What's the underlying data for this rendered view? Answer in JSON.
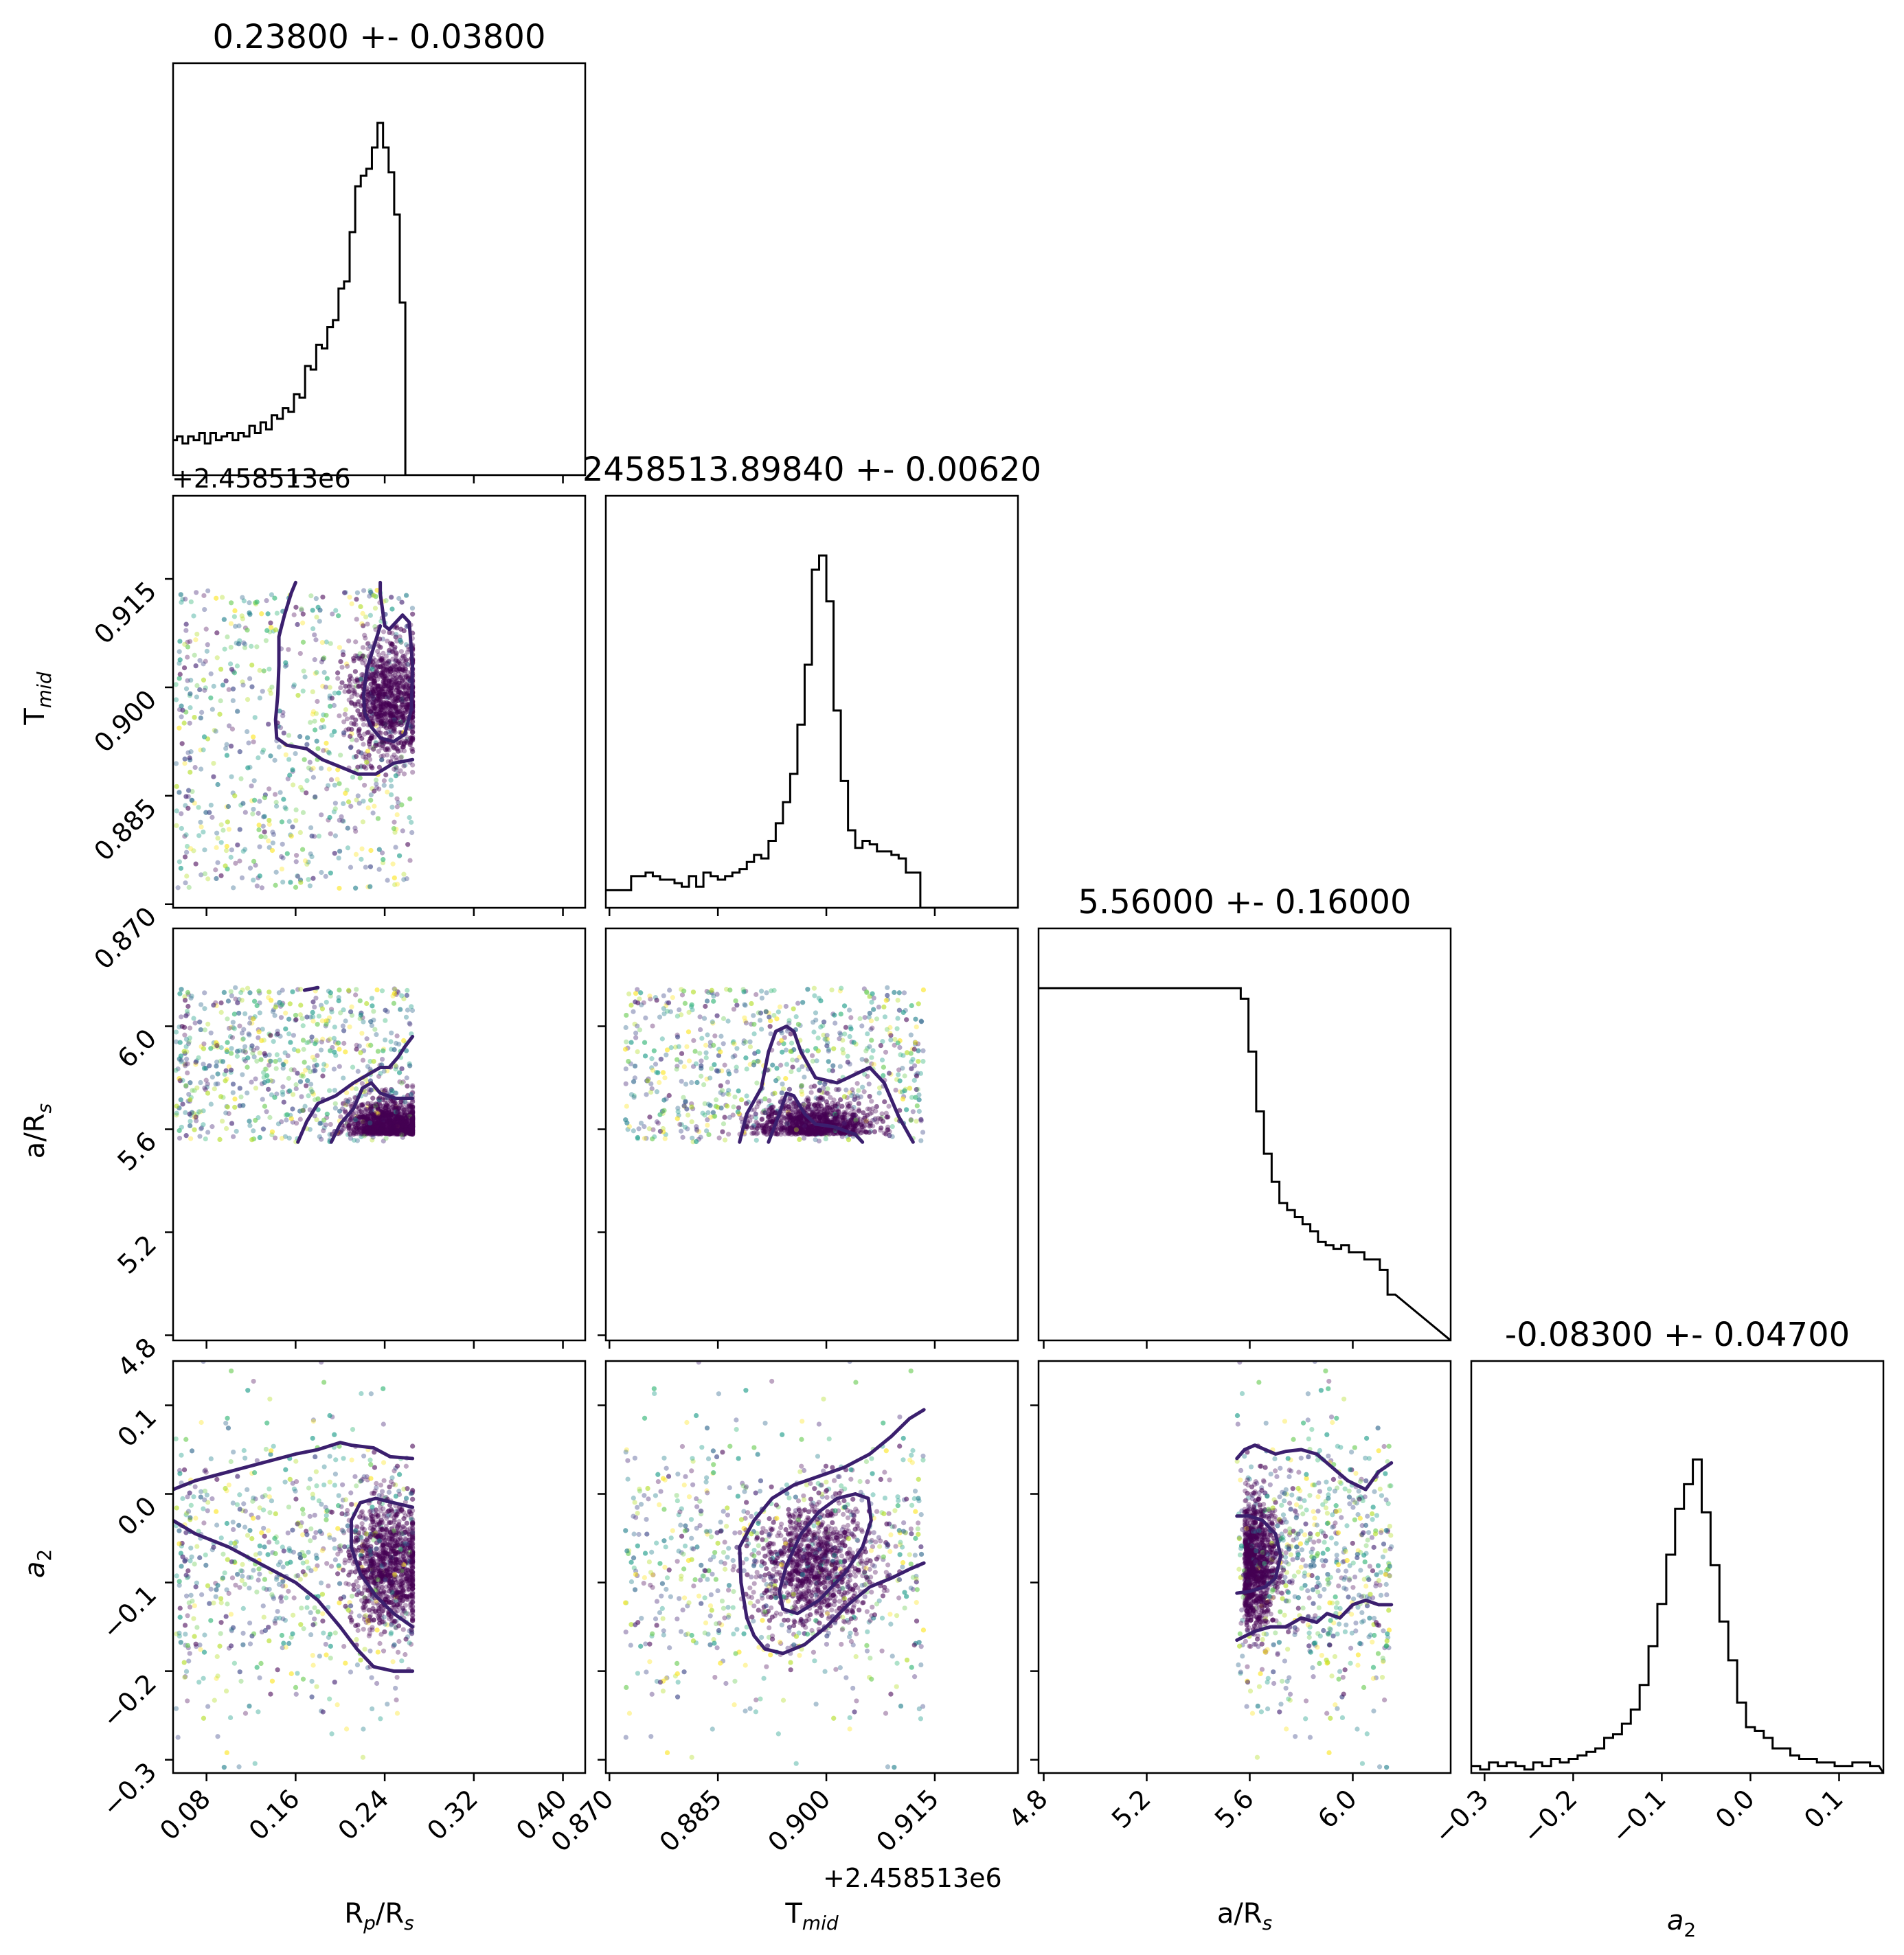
{
  "chart_data": {
    "type": "corner",
    "parameters": [
      {
        "key": "rprs",
        "label": "R_p/R_s",
        "label_main": "R",
        "label_sub": "p",
        "label_tail": "/R",
        "label_sub2": "s",
        "range": [
          0.05,
          0.42
        ],
        "ticks": [
          0.08,
          0.16,
          0.24,
          0.32,
          0.4
        ],
        "tick_labels": [
          "0.08",
          "0.16",
          "0.24",
          "0.32",
          "0.40"
        ],
        "title": "0.23800 +- 0.03800",
        "offset_text": ""
      },
      {
        "key": "tmid",
        "label": "T_mid",
        "label_main": "T",
        "label_sub": "mid",
        "label_tail": "",
        "label_sub2": "",
        "range": [
          0.8695,
          0.9265
        ],
        "ticks": [
          0.87,
          0.885,
          0.9,
          0.915
        ],
        "tick_labels": [
          "0.870",
          "0.885",
          "0.900",
          "0.915"
        ],
        "title": "2458513.89840 +- 0.00620",
        "offset_text": "+2.458513e6"
      },
      {
        "key": "ars",
        "label": "a/R_s",
        "label_main": "a/R",
        "label_sub": "s",
        "label_tail": "",
        "label_sub2": "",
        "range": [
          4.78,
          6.38
        ],
        "ticks": [
          4.8,
          5.2,
          5.6,
          6.0
        ],
        "tick_labels": [
          "4.8",
          "5.2",
          "5.6",
          "6.0"
        ],
        "title": "5.56000 +- 0.16000",
        "offset_text": ""
      },
      {
        "key": "a2",
        "label": "a_2",
        "label_main": "a",
        "label_sub": "2",
        "label_tail": "",
        "label_sub2": "",
        "range": [
          -0.315,
          0.15
        ],
        "ticks": [
          -0.3,
          -0.2,
          -0.1,
          0.0,
          0.1
        ],
        "tick_labels": [
          "−0.3",
          "−0.2",
          "−0.1",
          "0.0",
          "0.1"
        ],
        "title": "-0.08300 +- 0.04700",
        "offset_text": ""
      }
    ],
    "histograms": {
      "rprs": {
        "x": [
          0.051,
          0.056,
          0.061,
          0.066,
          0.071,
          0.076,
          0.081,
          0.086,
          0.091,
          0.096,
          0.101,
          0.106,
          0.111,
          0.116,
          0.121,
          0.126,
          0.131,
          0.136,
          0.141,
          0.146,
          0.151,
          0.156,
          0.161,
          0.166,
          0.171,
          0.176,
          0.181,
          0.186,
          0.191,
          0.196,
          0.201,
          0.206,
          0.211,
          0.216,
          0.221,
          0.226,
          0.231,
          0.236,
          0.241,
          0.246,
          0.251,
          0.256,
          0.261,
          0.266,
          0.271
        ],
        "y": [
          0.1,
          0.11,
          0.09,
          0.11,
          0.1,
          0.12,
          0.09,
          0.12,
          0.1,
          0.11,
          0.12,
          0.1,
          0.12,
          0.11,
          0.14,
          0.12,
          0.15,
          0.13,
          0.17,
          0.16,
          0.19,
          0.18,
          0.23,
          0.22,
          0.31,
          0.3,
          0.37,
          0.36,
          0.42,
          0.44,
          0.53,
          0.55,
          0.69,
          0.82,
          0.85,
          0.87,
          0.93,
          1.0,
          0.93,
          0.86,
          0.74,
          0.49,
          0.0,
          0.0,
          0.0
        ]
      },
      "tmid": {
        "x": [
          0.8725,
          0.8735,
          0.8745,
          0.8755,
          0.8765,
          0.8775,
          0.8785,
          0.8795,
          0.8805,
          0.8815,
          0.8825,
          0.8835,
          0.8845,
          0.8855,
          0.8865,
          0.8875,
          0.8885,
          0.8895,
          0.8905,
          0.8915,
          0.8925,
          0.8935,
          0.8945,
          0.8955,
          0.8965,
          0.8975,
          0.8985,
          0.8995,
          0.9005,
          0.9015,
          0.9025,
          0.9035,
          0.9045,
          0.9055,
          0.9065,
          0.9075,
          0.9085,
          0.9095,
          0.9105,
          0.9115,
          0.9125,
          0.9135
        ],
        "y": [
          0.05,
          0.09,
          0.09,
          0.1,
          0.09,
          0.08,
          0.08,
          0.07,
          0.06,
          0.09,
          0.06,
          0.1,
          0.09,
          0.08,
          0.09,
          0.1,
          0.11,
          0.13,
          0.15,
          0.14,
          0.19,
          0.24,
          0.3,
          0.38,
          0.52,
          0.69,
          0.96,
          1.0,
          0.87,
          0.56,
          0.36,
          0.22,
          0.17,
          0.19,
          0.18,
          0.16,
          0.16,
          0.15,
          0.14,
          0.1,
          0.1,
          0.0
        ]
      },
      "ars": {
        "x": [
          5.55,
          5.58,
          5.61,
          5.64,
          5.67,
          5.7,
          5.73,
          5.76,
          5.79,
          5.82,
          5.85,
          5.88,
          5.91,
          5.94,
          5.97,
          6.0,
          6.03,
          6.06,
          6.09,
          6.12,
          6.15
        ],
        "y": [
          1.0,
          0.97,
          0.82,
          0.65,
          0.53,
          0.45,
          0.39,
          0.37,
          0.35,
          0.33,
          0.31,
          0.28,
          0.27,
          0.26,
          0.27,
          0.25,
          0.25,
          0.23,
          0.23,
          0.2,
          0.13
        ]
      },
      "a2": {
        "x": [
          -0.31,
          -0.3,
          -0.29,
          -0.28,
          -0.27,
          -0.26,
          -0.25,
          -0.24,
          -0.23,
          -0.22,
          -0.21,
          -0.2,
          -0.19,
          -0.18,
          -0.17,
          -0.16,
          -0.15,
          -0.14,
          -0.13,
          -0.12,
          -0.11,
          -0.1,
          -0.09,
          -0.08,
          -0.07,
          -0.06,
          -0.05,
          -0.04,
          -0.03,
          -0.02,
          -0.01,
          0.0,
          0.01,
          0.02,
          0.03,
          0.04,
          0.05,
          0.06,
          0.07,
          0.08,
          0.09,
          0.1,
          0.11,
          0.12,
          0.13,
          0.14
        ],
        "y": [
          0.02,
          0.01,
          0.03,
          0.02,
          0.03,
          0.02,
          0.01,
          0.03,
          0.02,
          0.04,
          0.03,
          0.04,
          0.05,
          0.06,
          0.07,
          0.1,
          0.11,
          0.14,
          0.18,
          0.25,
          0.36,
          0.48,
          0.62,
          0.75,
          0.82,
          0.89,
          0.74,
          0.59,
          0.43,
          0.32,
          0.2,
          0.13,
          0.12,
          0.1,
          0.07,
          0.07,
          0.05,
          0.04,
          0.04,
          0.03,
          0.03,
          0.02,
          0.02,
          0.03,
          0.03,
          0.02
        ]
      }
    },
    "contours": {
      "tmid|rprs": [
        [
          [
            0.236,
            0.9145
          ],
          [
            0.236,
            0.913
          ],
          [
            0.24,
            0.9085
          ],
          [
            0.244,
            0.908
          ],
          [
            0.25,
            0.909
          ],
          [
            0.256,
            0.91
          ],
          [
            0.262,
            0.909
          ],
          [
            0.265,
            0.903
          ],
          [
            0.264,
            0.897
          ],
          [
            0.258,
            0.8935
          ],
          [
            0.248,
            0.8925
          ],
          [
            0.236,
            0.893
          ],
          [
            0.228,
            0.8945
          ],
          [
            0.222,
            0.8965
          ],
          [
            0.221,
            0.899
          ],
          [
            0.224,
            0.9025
          ],
          [
            0.23,
            0.9055
          ],
          [
            0.236,
            0.9085
          ]
        ],
        [
          [
            0.16,
            0.9145
          ],
          [
            0.156,
            0.913
          ],
          [
            0.15,
            0.91
          ],
          [
            0.145,
            0.907
          ],
          [
            0.145,
            0.903
          ],
          [
            0.144,
            0.899
          ],
          [
            0.142,
            0.8955
          ],
          [
            0.143,
            0.893
          ],
          [
            0.152,
            0.892
          ],
          [
            0.17,
            0.8915
          ],
          [
            0.184,
            0.89
          ],
          [
            0.2,
            0.889
          ],
          [
            0.216,
            0.888
          ],
          [
            0.232,
            0.888
          ],
          [
            0.248,
            0.8895
          ],
          [
            0.265,
            0.89
          ]
        ]
      ],
      "ars|rprs": [
        [
          [
            0.162,
            5.55
          ],
          [
            0.17,
            5.63
          ],
          [
            0.18,
            5.7
          ],
          [
            0.196,
            5.73
          ],
          [
            0.212,
            5.78
          ],
          [
            0.228,
            5.82
          ],
          [
            0.236,
            5.84
          ],
          [
            0.244,
            5.84
          ],
          [
            0.252,
            5.88
          ],
          [
            0.258,
            5.92
          ],
          [
            0.265,
            5.96
          ]
        ],
        [
          [
            0.192,
            5.55
          ],
          [
            0.2,
            5.62
          ],
          [
            0.212,
            5.68
          ],
          [
            0.22,
            5.76
          ],
          [
            0.228,
            5.78
          ],
          [
            0.236,
            5.74
          ],
          [
            0.25,
            5.72
          ],
          [
            0.265,
            5.72
          ]
        ],
        [
          [
            0.168,
            6.14
          ],
          [
            0.18,
            6.15
          ]
        ]
      ],
      "a2|rprs": [
        [
          [
            0.05,
            0.005
          ],
          [
            0.07,
            0.015
          ],
          [
            0.1,
            0.025
          ],
          [
            0.13,
            0.035
          ],
          [
            0.16,
            0.045
          ],
          [
            0.18,
            0.05
          ],
          [
            0.2,
            0.058
          ],
          [
            0.21,
            0.055
          ],
          [
            0.23,
            0.052
          ],
          [
            0.245,
            0.042
          ],
          [
            0.265,
            0.04
          ]
        ],
        [
          [
            0.05,
            -0.03
          ],
          [
            0.07,
            -0.045
          ],
          [
            0.1,
            -0.06
          ],
          [
            0.13,
            -0.08
          ],
          [
            0.16,
            -0.1
          ],
          [
            0.18,
            -0.12
          ],
          [
            0.2,
            -0.15
          ],
          [
            0.215,
            -0.175
          ],
          [
            0.23,
            -0.195
          ],
          [
            0.248,
            -0.2
          ],
          [
            0.265,
            -0.2
          ]
        ],
        [
          [
            0.265,
            -0.015
          ],
          [
            0.248,
            -0.01
          ],
          [
            0.232,
            -0.005
          ],
          [
            0.218,
            -0.01
          ],
          [
            0.21,
            -0.03
          ],
          [
            0.21,
            -0.06
          ],
          [
            0.218,
            -0.09
          ],
          [
            0.232,
            -0.115
          ],
          [
            0.248,
            -0.135
          ],
          [
            0.265,
            -0.15
          ]
        ]
      ],
      "ars|tmid": [
        [
          [
            0.888,
            5.55
          ],
          [
            0.889,
            5.66
          ],
          [
            0.891,
            5.76
          ],
          [
            0.892,
            5.9
          ],
          [
            0.893,
            5.98
          ],
          [
            0.8945,
            6.0
          ],
          [
            0.8955,
            5.98
          ],
          [
            0.8965,
            5.9
          ],
          [
            0.8985,
            5.8
          ],
          [
            0.9015,
            5.78
          ],
          [
            0.9045,
            5.82
          ],
          [
            0.906,
            5.84
          ],
          [
            0.908,
            5.78
          ],
          [
            0.91,
            5.65
          ],
          [
            0.912,
            5.55
          ]
        ],
        [
          [
            0.892,
            5.55
          ],
          [
            0.8935,
            5.66
          ],
          [
            0.8945,
            5.74
          ],
          [
            0.8955,
            5.73
          ],
          [
            0.897,
            5.66
          ],
          [
            0.8985,
            5.62
          ],
          [
            0.901,
            5.61
          ],
          [
            0.904,
            5.58
          ],
          [
            0.905,
            5.55
          ]
        ]
      ],
      "a2|tmid": [
        [
          [
            0.888,
            -0.06
          ],
          [
            0.89,
            -0.03
          ],
          [
            0.8925,
            -0.005
          ],
          [
            0.8955,
            0.01
          ],
          [
            0.899,
            0.02
          ],
          [
            0.9025,
            0.03
          ],
          [
            0.906,
            0.045
          ],
          [
            0.909,
            0.065
          ],
          [
            0.9115,
            0.085
          ],
          [
            0.9135,
            0.095
          ]
        ],
        [
          [
            0.888,
            -0.06
          ],
          [
            0.8882,
            -0.1
          ],
          [
            0.889,
            -0.14
          ],
          [
            0.89,
            -0.16
          ],
          [
            0.8915,
            -0.175
          ],
          [
            0.894,
            -0.18
          ],
          [
            0.897,
            -0.17
          ],
          [
            0.9,
            -0.15
          ],
          [
            0.903,
            -0.125
          ],
          [
            0.906,
            -0.105
          ],
          [
            0.909,
            -0.095
          ],
          [
            0.9115,
            -0.085
          ],
          [
            0.9135,
            -0.078
          ]
        ],
        [
          [
            0.894,
            -0.13
          ],
          [
            0.896,
            -0.135
          ],
          [
            0.899,
            -0.12
          ],
          [
            0.9025,
            -0.09
          ],
          [
            0.905,
            -0.06
          ],
          [
            0.9062,
            -0.03
          ],
          [
            0.9058,
            -0.005
          ],
          [
            0.904,
            0.0
          ],
          [
            0.9015,
            -0.005
          ],
          [
            0.899,
            -0.02
          ],
          [
            0.8965,
            -0.045
          ],
          [
            0.8945,
            -0.08
          ],
          [
            0.8935,
            -0.11
          ],
          [
            0.894,
            -0.13
          ]
        ]
      ],
      "a2|ars": [
        [
          [
            5.55,
            0.04
          ],
          [
            5.58,
            0.05
          ],
          [
            5.62,
            0.055
          ],
          [
            5.66,
            0.05
          ],
          [
            5.7,
            0.045
          ],
          [
            5.74,
            0.048
          ],
          [
            5.8,
            0.05
          ],
          [
            5.86,
            0.045
          ],
          [
            5.92,
            0.03
          ],
          [
            5.98,
            0.015
          ],
          [
            6.05,
            0.005
          ],
          [
            6.1,
            0.025
          ],
          [
            6.15,
            0.035
          ]
        ],
        [
          [
            5.55,
            -0.165
          ],
          [
            5.62,
            -0.155
          ],
          [
            5.68,
            -0.15
          ],
          [
            5.74,
            -0.15
          ],
          [
            5.8,
            -0.14
          ],
          [
            5.86,
            -0.145
          ],
          [
            5.9,
            -0.135
          ],
          [
            5.95,
            -0.14
          ],
          [
            6.0,
            -0.125
          ],
          [
            6.05,
            -0.12
          ],
          [
            6.1,
            -0.125
          ],
          [
            6.15,
            -0.125
          ]
        ],
        [
          [
            5.55,
            -0.025
          ],
          [
            5.6,
            -0.025
          ],
          [
            5.65,
            -0.03
          ],
          [
            5.7,
            -0.045
          ],
          [
            5.72,
            -0.07
          ],
          [
            5.7,
            -0.095
          ],
          [
            5.66,
            -0.105
          ],
          [
            5.6,
            -0.11
          ],
          [
            5.55,
            -0.112
          ]
        ]
      ]
    },
    "scatter_colormap": "viridis",
    "grid": false,
    "legend": "none"
  }
}
